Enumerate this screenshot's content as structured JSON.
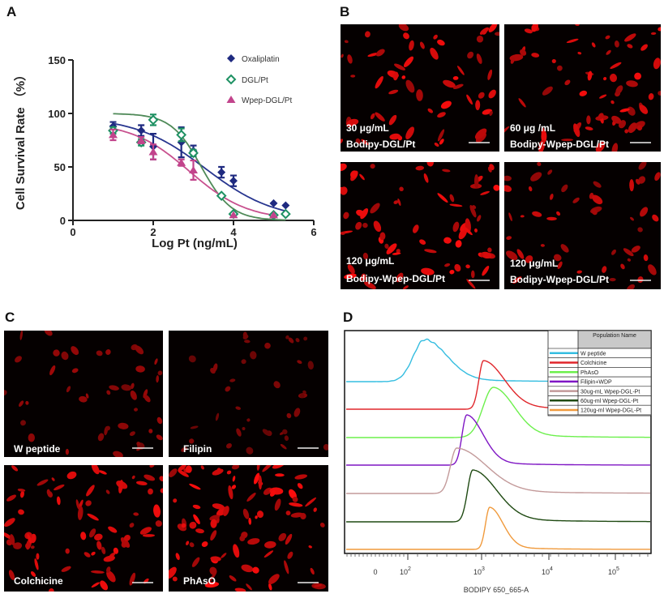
{
  "panels": {
    "a": "A",
    "b": "B",
    "c": "C",
    "d": "D"
  },
  "chart_data": [
    {
      "type": "scatter",
      "panel": "A",
      "xlabel": "Log Pt (ng/mL)",
      "ylabel": "Cell Survival Rate （%）",
      "xlim": [
        0,
        6
      ],
      "ylim": [
        0,
        150
      ],
      "xticks": [
        "0",
        "2",
        "4",
        "6"
      ],
      "yticks": [
        "0",
        "50",
        "100",
        "150"
      ],
      "legend_position": "top-right",
      "series": [
        {
          "name": "Oxaliplatin",
          "color": "#1f2a80",
          "marker": "filled-diamond",
          "x": [
            1,
            1.7,
            2,
            2.7,
            3,
            3.7,
            4,
            5,
            5.3
          ],
          "y": [
            88,
            84,
            69,
            73,
            65,
            45,
            37,
            16,
            14
          ],
          "err": [
            4,
            5,
            12,
            14,
            5,
            5,
            5,
            0,
            0
          ]
        },
        {
          "name": "DGL/Pt",
          "color": "#1e9163",
          "marker": "open-diamond",
          "x": [
            1,
            1.7,
            2,
            2.7,
            3,
            3.7,
            4,
            5,
            5.3
          ],
          "y": [
            84,
            73,
            94,
            80,
            63,
            23,
            6,
            5,
            6
          ],
          "err": [
            3,
            3,
            5,
            6,
            3,
            0,
            0,
            0,
            0
          ]
        },
        {
          "name": "Wpep-DGL/Pt",
          "color": "#c2448c",
          "marker": "filled-triangle",
          "x": [
            1,
            1.7,
            2,
            2.7,
            3,
            4,
            5
          ],
          "y": [
            80,
            75,
            64,
            54,
            47,
            5,
            5
          ],
          "err": [
            5,
            3,
            7,
            3,
            9,
            0,
            0
          ]
        }
      ]
    },
    {
      "type": "histogram-overlay",
      "panel": "D",
      "xlabel": "BODIPY 650_665-A",
      "xscale": "biexponential",
      "xticks": [
        {
          "base": "0",
          "exp": ""
        },
        {
          "base": "10",
          "exp": "2"
        },
        {
          "base": "10",
          "exp": "3"
        },
        {
          "base": "10",
          "exp": "4"
        },
        {
          "base": "10",
          "exp": "5"
        }
      ],
      "legend_header": "Population Name",
      "series": [
        {
          "name": "W peptide",
          "color": "#34bde0",
          "peak": 170
        },
        {
          "name": "Colchicine",
          "color": "#e0262b",
          "peak": 1070
        },
        {
          "name": "PhAsO",
          "color": "#6cf04c",
          "peak": 1500
        },
        {
          "name": "Filipin+WDP",
          "color": "#7f16c4",
          "peak": 630
        },
        {
          "name": "30ug-mL Wpep-DGL-Pt",
          "color": "#c39a9a",
          "peak": 460
        },
        {
          "name": "60ug-ml Wpep-DGL-Pt",
          "color": "#1f4a12",
          "peak": 760
        },
        {
          "name": "120ug-ml Wpep-DGL-Pt",
          "color": "#f09a3c",
          "peak": 1320
        }
      ]
    }
  ],
  "panel_b": [
    {
      "line1": "30 μg/mL",
      "line2": "Bodipy-DGL/Pt"
    },
    {
      "line1": "60 μg /mL",
      "line2": "Bodipy-Wpep-DGL/Pt"
    },
    {
      "line1": "120 μg/mL",
      "line2": "Bodipy-Wpep-DGL/Pt"
    },
    {
      "line1": "120 μg/mL",
      "line2": "Bodipy-Wpep-DGL/Pt"
    }
  ],
  "panel_c": [
    {
      "label": "W peptide"
    },
    {
      "label": "Filipin"
    },
    {
      "label": "Colchicine"
    },
    {
      "label": "PhAsO"
    }
  ]
}
